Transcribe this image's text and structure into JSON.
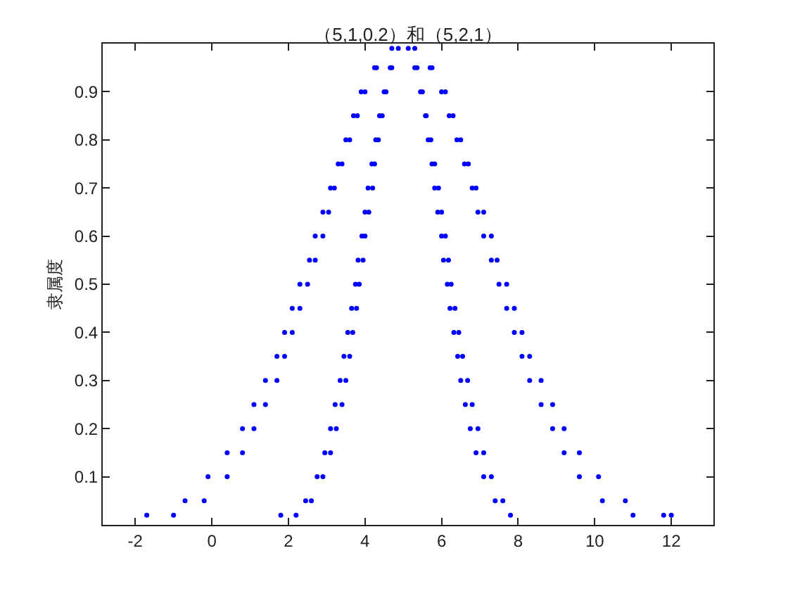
{
  "chart_data": {
    "type": "scatter",
    "title": "（5,1,0.2）和（5,2,1）",
    "ylabel": "隶属度",
    "marker": "circle",
    "xlim": [
      -2.85,
      13.1
    ],
    "ylim": [
      0,
      1
    ],
    "xticks": [
      -2,
      0,
      2,
      4,
      6,
      8,
      10,
      12
    ],
    "yticks": [
      0.1,
      0.2,
      0.3,
      0.4,
      0.5,
      0.6,
      0.7,
      0.8,
      0.9
    ],
    "series": [
      {
        "color": "#0000ff",
        "x": [
          4.87,
          5.13,
          4.7,
          5.3,
          4.66,
          5.36,
          4.55,
          5.45,
          4.5,
          5.5,
          4.45,
          5.58,
          4.38,
          5.6,
          4.35,
          5.65,
          4.28,
          5.72,
          4.25,
          5.75,
          4.18,
          5.82,
          4.2,
          5.82,
          4.08,
          5.92,
          4.1,
          5.9,
          4.0,
          6.0,
          4.0,
          6.0,
          3.92,
          6.1,
          3.95,
          6.05,
          3.82,
          6.18,
          3.85,
          6.15,
          3.75,
          6.25,
          3.78,
          6.22,
          3.65,
          6.35,
          3.68,
          6.32,
          3.55,
          6.45,
          3.6,
          6.42,
          3.45,
          6.55,
          3.5,
          6.5,
          3.35,
          6.68,
          3.4,
          6.62,
          3.22,
          6.8,
          3.25,
          6.75,
          3.1,
          6.95,
          3.1,
          6.9,
          2.95,
          7.1,
          2.9,
          7.1,
          2.75,
          7.3,
          2.6,
          7.4,
          2.45,
          7.6,
          2.2,
          7.8,
          1.8
        ],
        "values": [
          0.99,
          0.99,
          0.95,
          0.95,
          0.95,
          0.95,
          0.9,
          0.9,
          0.9,
          0.9,
          0.85,
          0.85,
          0.85,
          0.85,
          0.8,
          0.8,
          0.8,
          0.8,
          0.75,
          0.75,
          0.75,
          0.75,
          0.7,
          0.7,
          0.7,
          0.7,
          0.65,
          0.65,
          0.65,
          0.65,
          0.6,
          0.6,
          0.6,
          0.6,
          0.55,
          0.55,
          0.55,
          0.55,
          0.5,
          0.5,
          0.5,
          0.5,
          0.45,
          0.45,
          0.45,
          0.45,
          0.4,
          0.4,
          0.4,
          0.4,
          0.35,
          0.35,
          0.35,
          0.35,
          0.3,
          0.3,
          0.3,
          0.3,
          0.25,
          0.25,
          0.25,
          0.25,
          0.2,
          0.2,
          0.2,
          0.2,
          0.15,
          0.15,
          0.15,
          0.15,
          0.1,
          0.1,
          0.1,
          0.1,
          0.05,
          0.05,
          0.05,
          0.05,
          0.02,
          0.02,
          0.02
        ]
      },
      {
        "color": "#0000ff",
        "x": [
          4.7,
          5.3,
          4.3,
          5.7,
          4.25,
          5.75,
          4.0,
          6.0,
          3.9,
          6.1,
          3.8,
          6.2,
          3.7,
          6.3,
          3.6,
          6.4,
          3.5,
          6.5,
          3.4,
          6.6,
          3.3,
          6.7,
          3.2,
          6.8,
          3.1,
          6.9,
          3.05,
          6.95,
          2.9,
          7.1,
          2.9,
          7.1,
          2.7,
          7.3,
          2.7,
          7.3,
          2.55,
          7.45,
          2.5,
          7.5,
          2.3,
          7.7,
          2.3,
          7.7,
          2.1,
          7.9,
          2.1,
          7.9,
          1.9,
          8.1,
          1.9,
          8.1,
          1.7,
          8.3,
          1.7,
          8.3,
          1.4,
          8.6,
          1.4,
          8.6,
          1.1,
          8.9,
          1.1,
          8.9,
          0.8,
          9.2,
          0.8,
          9.2,
          0.4,
          9.6,
          0.4,
          9.6,
          -0.1,
          10.1,
          -0.2,
          10.2,
          -0.7,
          10.8,
          -1.0,
          11.0,
          -1.7,
          11.8,
          12.0
        ],
        "values": [
          0.99,
          0.99,
          0.95,
          0.95,
          0.95,
          0.95,
          0.9,
          0.9,
          0.9,
          0.9,
          0.85,
          0.85,
          0.85,
          0.85,
          0.8,
          0.8,
          0.8,
          0.8,
          0.75,
          0.75,
          0.75,
          0.75,
          0.7,
          0.7,
          0.7,
          0.7,
          0.65,
          0.65,
          0.65,
          0.65,
          0.6,
          0.6,
          0.6,
          0.6,
          0.55,
          0.55,
          0.55,
          0.55,
          0.5,
          0.5,
          0.5,
          0.5,
          0.45,
          0.45,
          0.45,
          0.45,
          0.4,
          0.4,
          0.4,
          0.4,
          0.35,
          0.35,
          0.35,
          0.35,
          0.3,
          0.3,
          0.3,
          0.3,
          0.25,
          0.25,
          0.25,
          0.25,
          0.2,
          0.2,
          0.2,
          0.2,
          0.15,
          0.15,
          0.15,
          0.15,
          0.1,
          0.1,
          0.1,
          0.1,
          0.05,
          0.05,
          0.05,
          0.05,
          0.02,
          0.02,
          0.02,
          0.02,
          0.02
        ]
      }
    ]
  }
}
